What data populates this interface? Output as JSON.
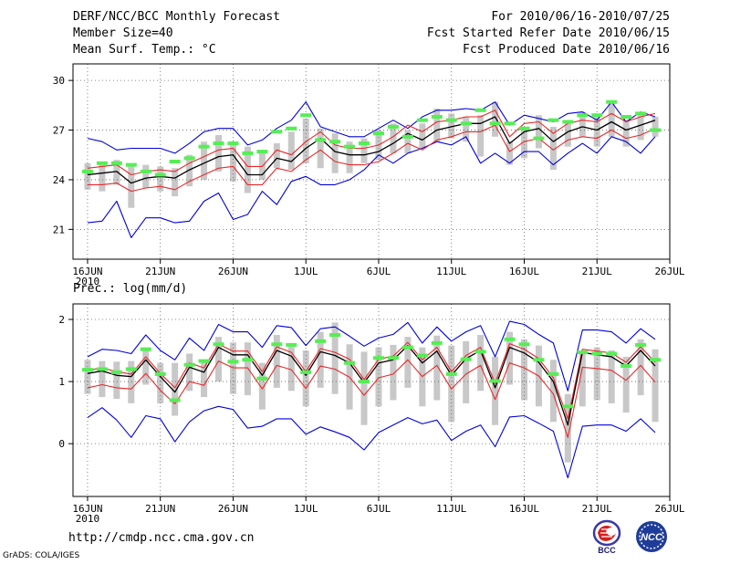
{
  "header": {
    "title": "DERF/NCC/BCC Monthly Forecast",
    "member": "Member Size=40",
    "variable": "Mean Surf. Temp.: °C",
    "period": "For 2010/06/16-2010/07/25",
    "started": "Fcst Started Refer Date 2010/06/15",
    "produced": "Fcst Produced Date 2010/06/16"
  },
  "footer": {
    "url": "http://cmdp.ncc.cma.gov.cn",
    "grads": "GrADS: COLA/IGES",
    "logo_bcc": "BCC",
    "logo_ncc": "NCC"
  },
  "colors": {
    "box": "#c8c8c8",
    "ensemble": "#000000",
    "spread": "#e8282a",
    "extreme": "#0000dd",
    "obs": "#55ee55",
    "grid": "#666666"
  },
  "chart_data": [
    {
      "type": "line",
      "title": "Mean Surf. Temp.: °C",
      "x_tick_labels": [
        "16JUN",
        "21JUN",
        "26JUN",
        "1JUL",
        "6JUL",
        "11JUL",
        "16JUL",
        "21JUL",
        "26JUL"
      ],
      "x_year_label": "2010",
      "x_tick_days": [
        0,
        5,
        10,
        15,
        20,
        25,
        30,
        35,
        40
      ],
      "xlim": [
        -1,
        40
      ],
      "ylim": [
        19.2,
        31
      ],
      "yticks": [
        21,
        24,
        27,
        30
      ],
      "ytick_labels": [
        "21",
        "24",
        "27",
        "30"
      ],
      "days": [
        0,
        1,
        2,
        3,
        4,
        5,
        6,
        7,
        8,
        9,
        10,
        11,
        12,
        13,
        14,
        15,
        16,
        17,
        18,
        19,
        20,
        21,
        22,
        23,
        24,
        25,
        26,
        27,
        28,
        29,
        30,
        31,
        32,
        33,
        34,
        35,
        36,
        37,
        38,
        39
      ],
      "series": [
        {
          "name": "ensemble_mean",
          "values": [
            24.3,
            24.4,
            24.5,
            23.8,
            24.1,
            24.2,
            24.1,
            24.6,
            25.0,
            25.4,
            25.5,
            24.3,
            24.3,
            25.3,
            25.1,
            25.9,
            26.5,
            25.7,
            25.5,
            25.5,
            25.7,
            26.2,
            26.8,
            26.4,
            27.0,
            27.2,
            27.4,
            27.4,
            27.8,
            26.2,
            26.9,
            27.1,
            26.3,
            26.9,
            27.2,
            27.0,
            27.5,
            27.0,
            27.3,
            27.6
          ]
        },
        {
          "name": "spread_upper",
          "values": [
            24.7,
            24.8,
            24.9,
            24.3,
            24.5,
            24.6,
            24.5,
            25.0,
            25.4,
            25.8,
            25.9,
            24.8,
            24.8,
            25.8,
            25.5,
            26.3,
            26.9,
            26.1,
            25.9,
            25.9,
            26.1,
            26.6,
            27.3,
            26.9,
            27.5,
            27.6,
            27.8,
            27.8,
            28.2,
            26.6,
            27.4,
            27.5,
            26.8,
            27.4,
            27.6,
            27.5,
            28.0,
            27.5,
            27.8,
            28.0
          ]
        },
        {
          "name": "spread_lower",
          "values": [
            23.7,
            23.7,
            23.8,
            23.3,
            23.5,
            23.6,
            23.4,
            23.9,
            24.3,
            24.7,
            24.8,
            23.7,
            23.7,
            24.7,
            24.5,
            25.2,
            25.8,
            25.1,
            24.9,
            24.9,
            25.1,
            25.6,
            26.2,
            25.8,
            26.4,
            26.6,
            26.9,
            26.9,
            27.3,
            25.7,
            26.3,
            26.5,
            25.8,
            26.4,
            26.6,
            26.5,
            27.0,
            26.5,
            26.7,
            27.1
          ]
        },
        {
          "name": "member_max",
          "values": [
            26.5,
            26.3,
            25.8,
            25.9,
            25.9,
            25.9,
            25.6,
            26.2,
            26.9,
            27.1,
            27.1,
            26.1,
            26.4,
            27.1,
            27.6,
            28.7,
            27.2,
            26.9,
            26.6,
            26.6,
            27.1,
            27.6,
            27.1,
            27.8,
            28.2,
            28.2,
            28.3,
            28.2,
            28.7,
            27.3,
            27.9,
            27.7,
            27.5,
            28.0,
            28.1,
            27.6,
            28.7,
            27.5,
            28.1,
            27.8
          ]
        },
        {
          "name": "member_min",
          "values": [
            21.4,
            21.5,
            22.7,
            20.5,
            21.7,
            21.7,
            21.4,
            21.5,
            22.7,
            23.2,
            21.6,
            21.9,
            23.3,
            22.5,
            23.9,
            24.2,
            23.7,
            23.7,
            24.0,
            24.6,
            25.5,
            25.0,
            25.6,
            25.9,
            26.3,
            26.1,
            26.6,
            25.0,
            25.6,
            25.0,
            25.7,
            25.7,
            24.9,
            25.6,
            26.2,
            25.6,
            26.6,
            26.3,
            25.6,
            26.6
          ]
        },
        {
          "name": "observed",
          "values": [
            24.5,
            25.0,
            25.0,
            24.9,
            24.5,
            24.3,
            25.1,
            25.3,
            26.0,
            26.2,
            26.2,
            25.6,
            25.7,
            26.9,
            27.1,
            27.9,
            26.4,
            26.3,
            26.0,
            26.2,
            26.8,
            27.2,
            26.6,
            27.6,
            27.8,
            27.6,
            27.4,
            28.2,
            27.4,
            27.4,
            27.1,
            26.5,
            27.6,
            27.5,
            27.9,
            27.9,
            28.7,
            27.8,
            28.0,
            27.0
          ]
        },
        {
          "name": "box_top",
          "values": [
            25.0,
            25.1,
            25.2,
            24.8,
            24.9,
            24.8,
            24.7,
            25.5,
            26.3,
            26.7,
            26.1,
            26.0,
            25.6,
            26.2,
            26.9,
            27.7,
            27.1,
            26.8,
            26.3,
            26.5,
            27.0,
            27.4,
            27.0,
            27.4,
            28.3,
            28.0,
            27.8,
            27.9,
            28.7,
            26.3,
            27.1,
            27.9,
            27.2,
            27.6,
            28.1,
            27.8,
            28.6,
            27.6,
            28.1,
            27.8
          ]
        },
        {
          "name": "box_bottom",
          "values": [
            23.4,
            23.3,
            23.7,
            22.3,
            23.5,
            23.3,
            23.0,
            23.6,
            24.0,
            24.5,
            23.9,
            23.2,
            24.0,
            24.7,
            24.6,
            25.0,
            24.7,
            24.4,
            24.4,
            25.0,
            25.2,
            25.6,
            25.6,
            25.9,
            26.3,
            26.5,
            26.3,
            25.4,
            26.6,
            24.9,
            25.3,
            25.9,
            24.6,
            26.0,
            26.6,
            26.0,
            26.6,
            26.0,
            26.4,
            26.6
          ]
        }
      ]
    },
    {
      "type": "line",
      "title": "Prec.: log(mm/d)",
      "x_tick_labels": [
        "16JUN",
        "21JUN",
        "26JUN",
        "1JUL",
        "6JUL",
        "11JUL",
        "16JUL",
        "21JUL",
        "26JUL"
      ],
      "x_year_label": "2010",
      "x_tick_days": [
        0,
        5,
        10,
        15,
        20,
        25,
        30,
        35,
        40
      ],
      "xlim": [
        -1,
        40
      ],
      "ylim": [
        -0.85,
        2.25
      ],
      "yticks": [
        0,
        1,
        2
      ],
      "ytick_labels": [
        "0",
        "1",
        "2"
      ],
      "days": [
        0,
        1,
        2,
        3,
        4,
        5,
        6,
        7,
        8,
        9,
        10,
        11,
        12,
        13,
        14,
        15,
        16,
        17,
        18,
        19,
        20,
        21,
        22,
        23,
        24,
        25,
        26,
        27,
        28,
        29,
        30,
        31,
        32,
        33,
        34,
        35,
        36,
        37,
        38,
        39
      ],
      "series": [
        {
          "name": "ensemble_mean",
          "values": [
            1.13,
            1.17,
            1.1,
            1.08,
            1.35,
            1.08,
            0.83,
            1.23,
            1.15,
            1.55,
            1.43,
            1.43,
            1.1,
            1.5,
            1.41,
            1.1,
            1.48,
            1.42,
            1.3,
            0.98,
            1.3,
            1.35,
            1.58,
            1.3,
            1.49,
            1.1,
            1.37,
            1.5,
            0.9,
            1.55,
            1.46,
            1.31,
            1.0,
            0.3,
            1.47,
            1.43,
            1.4,
            1.25,
            1.5,
            1.25
          ]
        },
        {
          "name": "spread_upper",
          "values": [
            1.18,
            1.22,
            1.16,
            1.12,
            1.4,
            1.13,
            0.9,
            1.3,
            1.22,
            1.6,
            1.49,
            1.49,
            1.16,
            1.56,
            1.47,
            1.16,
            1.53,
            1.47,
            1.36,
            1.03,
            1.36,
            1.41,
            1.63,
            1.35,
            1.55,
            1.16,
            1.42,
            1.55,
            0.97,
            1.61,
            1.52,
            1.37,
            1.06,
            0.4,
            1.52,
            1.49,
            1.46,
            1.31,
            1.56,
            1.31
          ]
        },
        {
          "name": "spread_lower",
          "values": [
            0.9,
            0.95,
            0.9,
            0.88,
            1.13,
            0.86,
            0.64,
            1.0,
            0.94,
            1.33,
            1.22,
            1.22,
            0.88,
            1.26,
            1.19,
            0.89,
            1.25,
            1.2,
            1.07,
            0.78,
            1.06,
            1.12,
            1.35,
            1.08,
            1.26,
            0.88,
            1.12,
            1.26,
            0.71,
            1.3,
            1.22,
            1.09,
            0.8,
            0.1,
            1.23,
            1.21,
            1.18,
            1.02,
            1.26,
            0.99
          ]
        },
        {
          "name": "member_max",
          "values": [
            1.4,
            1.52,
            1.5,
            1.45,
            1.75,
            1.5,
            1.35,
            1.7,
            1.5,
            1.92,
            1.8,
            1.8,
            1.55,
            1.9,
            1.87,
            1.58,
            1.85,
            1.88,
            1.73,
            1.57,
            1.7,
            1.76,
            1.95,
            1.62,
            1.88,
            1.65,
            1.8,
            1.9,
            1.4,
            1.97,
            1.92,
            1.76,
            1.62,
            0.85,
            1.83,
            1.83,
            1.8,
            1.62,
            1.85,
            1.68
          ]
        },
        {
          "name": "member_min",
          "values": [
            0.42,
            0.58,
            0.38,
            0.1,
            0.45,
            0.4,
            0.03,
            0.35,
            0.53,
            0.6,
            0.55,
            0.25,
            0.28,
            0.4,
            0.4,
            0.15,
            0.27,
            0.19,
            0.1,
            -0.1,
            0.18,
            0.3,
            0.42,
            0.32,
            0.38,
            0.05,
            0.2,
            0.3,
            -0.05,
            0.43,
            0.45,
            0.33,
            0.2,
            -0.55,
            0.28,
            0.3,
            0.3,
            0.2,
            0.4,
            0.18
          ]
        },
        {
          "name": "observed",
          "values": [
            1.19,
            1.2,
            1.15,
            1.2,
            1.52,
            1.12,
            0.7,
            1.27,
            1.33,
            1.6,
            1.32,
            1.35,
            1.05,
            1.6,
            1.59,
            1.15,
            1.65,
            1.75,
            1.3,
            1.0,
            1.38,
            1.38,
            1.55,
            1.42,
            1.62,
            1.12,
            1.36,
            1.48,
            1.01,
            1.68,
            1.6,
            1.35,
            1.12,
            0.6,
            1.47,
            1.45,
            1.45,
            1.25,
            1.59,
            1.35
          ]
        },
        {
          "name": "box_top",
          "values": [
            1.35,
            1.33,
            1.32,
            1.33,
            1.55,
            1.3,
            1.3,
            1.45,
            1.35,
            1.72,
            1.63,
            1.63,
            1.3,
            1.75,
            1.62,
            1.5,
            1.8,
            1.95,
            1.6,
            1.48,
            1.55,
            1.59,
            1.72,
            1.55,
            1.74,
            1.58,
            1.65,
            1.75,
            1.4,
            1.8,
            1.68,
            1.58,
            1.35,
            0.8,
            1.5,
            1.55,
            1.5,
            1.4,
            1.68,
            1.52
          ]
        },
        {
          "name": "box_bottom",
          "values": [
            0.8,
            0.75,
            0.72,
            0.65,
            0.95,
            0.65,
            0.45,
            0.85,
            0.75,
            1.0,
            0.8,
            0.78,
            0.55,
            0.9,
            0.85,
            0.6,
            0.9,
            0.8,
            0.55,
            0.3,
            0.6,
            0.7,
            0.9,
            0.6,
            0.7,
            0.35,
            0.65,
            0.85,
            0.3,
            0.95,
            0.7,
            0.6,
            0.35,
            -0.3,
            0.6,
            0.7,
            0.65,
            0.5,
            0.78,
            0.35
          ]
        }
      ]
    }
  ]
}
